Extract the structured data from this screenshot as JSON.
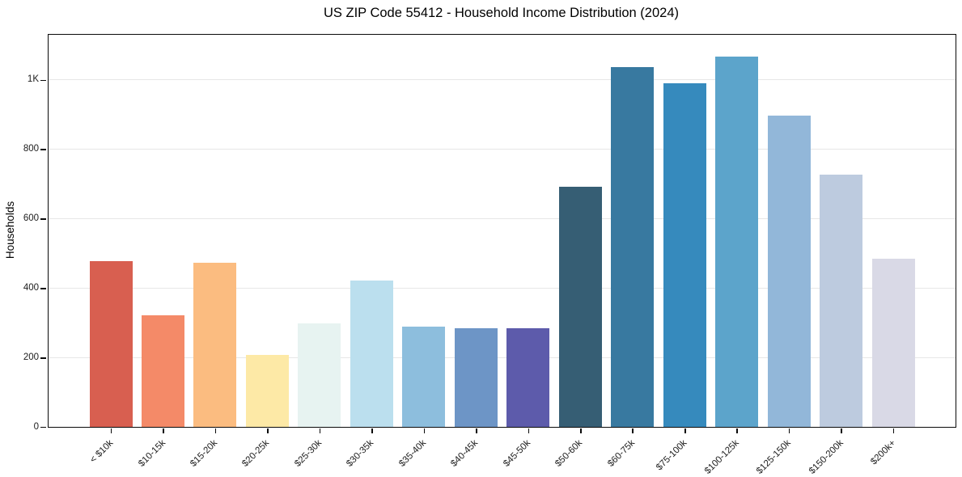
{
  "chart_data": {
    "type": "bar",
    "title": "US ZIP Code 55412 - Household Income Distribution (2024)",
    "xlabel": "",
    "ylabel": "Households",
    "categories": [
      "< $10k",
      "$10-15k",
      "$15-20k",
      "$20-25k",
      "$25-30k",
      "$30-35k",
      "$35-40k",
      "$40-45k",
      "$45-50k",
      "$50-60k",
      "$60-75k",
      "$75-100k",
      "$100-125k",
      "$125-150k",
      "$150-200k",
      "$200k+"
    ],
    "values": [
      478,
      322,
      472,
      208,
      299,
      421,
      290,
      284,
      284,
      691,
      1036,
      991,
      1068,
      896,
      727,
      484
    ],
    "bar_colors": [
      "#d85f50",
      "#f48a68",
      "#fbbc80",
      "#fde9a6",
      "#e7f3f1",
      "#bbdfee",
      "#8dbedd",
      "#6d95c6",
      "#5d5bab",
      "#365e74",
      "#3879a0",
      "#368abd",
      "#5ca4cb",
      "#92b7d9",
      "#bdcbdf",
      "#d9d9e6"
    ],
    "ylim": [
      0,
      1130
    ],
    "yticks": [
      {
        "value": 0,
        "label": "0"
      },
      {
        "value": 200,
        "label": "200"
      },
      {
        "value": 400,
        "label": "400"
      },
      {
        "value": 600,
        "label": "600"
      },
      {
        "value": 800,
        "label": "800"
      },
      {
        "value": 1000,
        "label": "1K"
      }
    ],
    "grid": "horizontal",
    "legend": "none",
    "colors": {
      "background": "#ffffff",
      "gridline": "#e7e7e7",
      "spine": "#0a0a0a",
      "tick_label": "#1c1c1c",
      "title": "#000000"
    }
  }
}
